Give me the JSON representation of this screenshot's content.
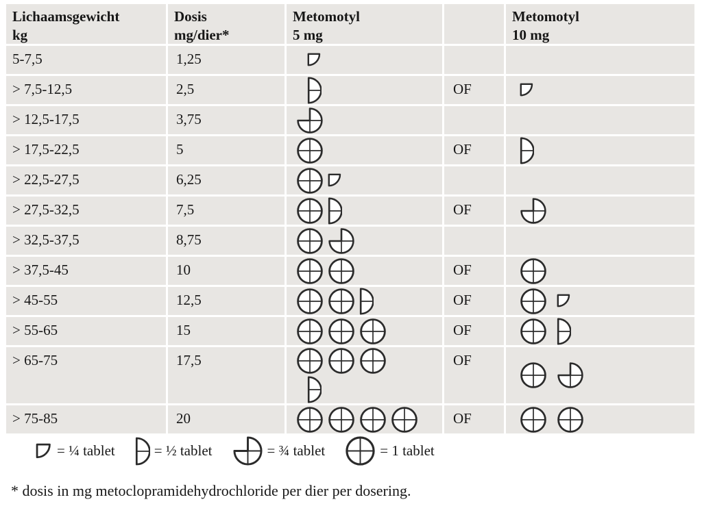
{
  "colors": {
    "cell_background": "#e8e6e3",
    "grid_line": "#ffffff",
    "icon_stroke": "#2b2b2b",
    "text": "#171717"
  },
  "icons": {
    "q": "quarter-tablet",
    "h": "half-tablet",
    "t": "three-quarter-tablet",
    "f": "full-tablet"
  },
  "table": {
    "headers": [
      {
        "line1": "Lichaamsgewicht",
        "line2": "kg"
      },
      {
        "line1": "Dosis",
        "line2": "mg/dier*"
      },
      {
        "line1": "Metomotyl",
        "line2": "5 mg"
      },
      {
        "line1": "",
        "line2": ""
      },
      {
        "line1": "Metomotyl",
        "line2": "10 mg"
      }
    ],
    "rows": [
      {
        "weight": "5-7,5",
        "dose": "1,25",
        "tabs5": [
          [
            "q"
          ]
        ],
        "or": "",
        "tabs10": []
      },
      {
        "weight": "> 7,5-12,5",
        "dose": "2,5",
        "tabs5": [
          [
            "h"
          ]
        ],
        "or": "OF",
        "tabs10": [
          [
            "q"
          ]
        ]
      },
      {
        "weight": "> 12,5-17,5",
        "dose": "3,75",
        "tabs5": [
          [
            "t"
          ]
        ],
        "or": "",
        "tabs10": []
      },
      {
        "weight": "> 17,5-22,5",
        "dose": "5",
        "tabs5": [
          [
            "f"
          ]
        ],
        "or": "OF",
        "tabs10": [
          [
            "h"
          ]
        ]
      },
      {
        "weight": "> 22,5-27,5",
        "dose": "6,25",
        "tabs5": [
          [
            "f",
            "q"
          ]
        ],
        "or": "",
        "tabs10": []
      },
      {
        "weight": "> 27,5-32,5",
        "dose": "7,5",
        "tabs5": [
          [
            "f",
            "h"
          ]
        ],
        "or": "OF",
        "tabs10": [
          [
            "t"
          ]
        ]
      },
      {
        "weight": "> 32,5-37,5",
        "dose": "8,75",
        "tabs5": [
          [
            "f",
            "t"
          ]
        ],
        "or": "",
        "tabs10": []
      },
      {
        "weight": "> 37,5-45",
        "dose": "10",
        "tabs5": [
          [
            "f",
            "f"
          ]
        ],
        "or": "OF",
        "tabs10": [
          [
            "f"
          ]
        ]
      },
      {
        "weight": "> 45-55",
        "dose": "12,5",
        "tabs5": [
          [
            "f",
            "f",
            "h"
          ]
        ],
        "or": "OF",
        "tabs10": [
          [
            "f",
            "q"
          ]
        ]
      },
      {
        "weight": "> 55-65",
        "dose": "15",
        "tabs5": [
          [
            "f",
            "f",
            "f"
          ]
        ],
        "or": "OF",
        "tabs10": [
          [
            "f",
            "h"
          ]
        ]
      },
      {
        "weight": "> 65-75",
        "dose": "17,5",
        "tabs5": [
          [
            "f",
            "f",
            "f"
          ],
          [
            "h"
          ]
        ],
        "or": "OF",
        "tabs10": [
          [
            "f",
            "t"
          ]
        ]
      },
      {
        "weight": "> 75-85",
        "dose": "20",
        "tabs5": [
          [
            "f",
            "f",
            "f",
            "f"
          ]
        ],
        "or": "OF",
        "tabs10": [
          [
            "f",
            "f"
          ]
        ]
      }
    ]
  },
  "legend": [
    {
      "icon": "q",
      "label": "= ¼ tablet"
    },
    {
      "icon": "h",
      "label": "= ½ tablet"
    },
    {
      "icon": "t",
      "label": "= ¾ tablet"
    },
    {
      "icon": "f",
      "label": "= 1 tablet"
    }
  ],
  "footnote": "* dosis in mg metoclopramidehydrochloride per dier per dosering."
}
